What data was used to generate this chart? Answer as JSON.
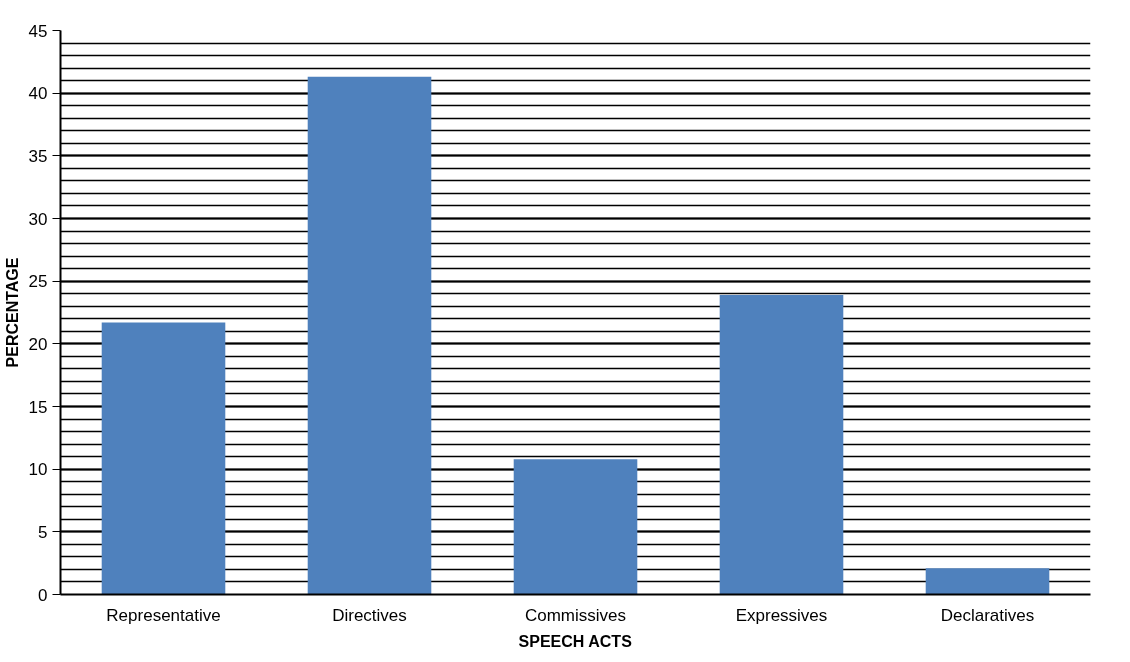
{
  "chart_data": {
    "type": "bar",
    "xlabel": "SPEECH ACTS",
    "ylabel": "PERCENTAGE",
    "categories": [
      "Representative",
      "Directives",
      "Commissives",
      "Expressives",
      "Declaratives"
    ],
    "values": [
      21.7,
      41.3,
      10.8,
      23.9,
      2.1
    ],
    "color": "#4f81bd",
    "ylim": [
      0,
      45
    ],
    "yticks": [
      0,
      5,
      10,
      15,
      20,
      25,
      30,
      35,
      40,
      45
    ],
    "grid": "y"
  }
}
